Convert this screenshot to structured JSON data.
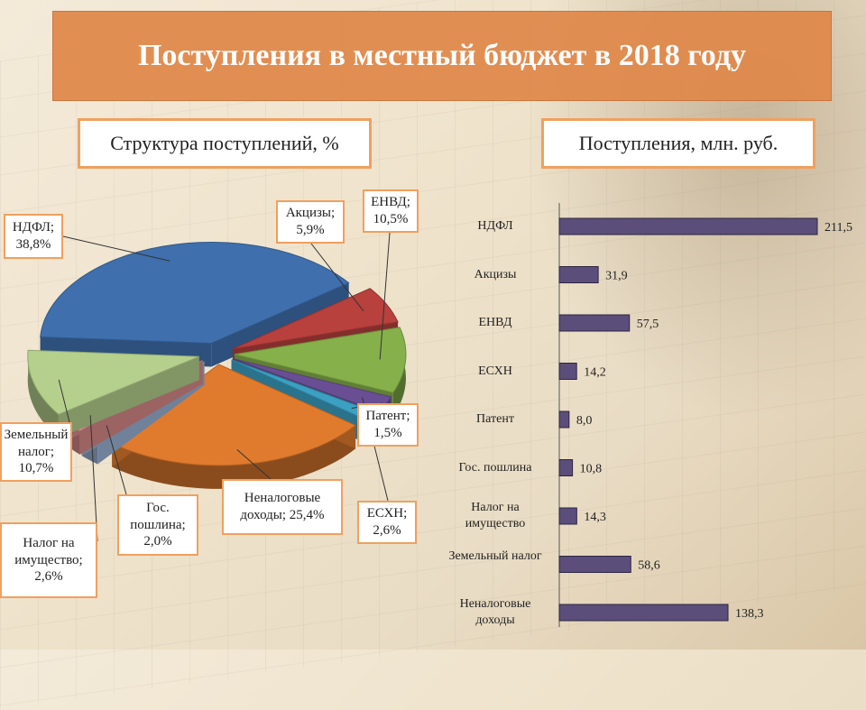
{
  "title": "Поступления в местный бюджет в 2018 году",
  "pie_header": "Структура поступлений, %",
  "bar_header": "Поступления, млн. руб.",
  "chart_data": [
    {
      "type": "pie",
      "title": "Структура поступлений, %",
      "slices": [
        {
          "label": "НДФЛ; 38,8%",
          "name": "НДФЛ",
          "value": 38.8,
          "color": "#3f6fad"
        },
        {
          "label": "Акцизы; 5,9%",
          "name": "Акцизы",
          "value": 5.9,
          "color": "#b8403d"
        },
        {
          "label": "ЕНВД; 10,5%",
          "name": "ЕНВД",
          "value": 10.5,
          "color": "#86b04a"
        },
        {
          "label": "ЕСХН; 2,6%",
          "name": "ЕСХН",
          "value": 2.6,
          "color": "#6a4e93"
        },
        {
          "label": "Патент; 1,5%",
          "name": "Патент",
          "value": 1.5,
          "color": "#3ba0c2"
        },
        {
          "label": "Неналоговые доходы; 25,4%",
          "name": "Неналоговые доходы",
          "value": 25.4,
          "color": "#e07b2e"
        },
        {
          "label": "Гос. пошлина; 2,0%",
          "name": "Гос. пошлина",
          "value": 2.0,
          "color": "#9bb3d6"
        },
        {
          "label": "Налог на имущество; 2,6%",
          "name": "Налог на имущество",
          "value": 2.6,
          "color": "#d88a8a"
        },
        {
          "label": "Земельный налог; 10,7%",
          "name": "Земельный налог",
          "value": 10.7,
          "color": "#b5cf8c"
        }
      ]
    },
    {
      "type": "bar",
      "orientation": "horizontal",
      "title": "Поступления, млн. руб.",
      "categories": [
        "НДФЛ",
        "Акцизы",
        "ЕНВД",
        "ЕСХН",
        "Патент",
        "Гос. пошлина",
        "Налог на имущество",
        "Земельный налог",
        "Неналоговые доходы"
      ],
      "values": [
        211.5,
        31.9,
        57.5,
        14.2,
        8.0,
        10.8,
        14.3,
        58.6,
        138.3
      ],
      "value_labels": [
        "211,5",
        "31,9",
        "57,5",
        "14,2",
        "8,0",
        "10,8",
        "14,3",
        "58,6",
        "138,3"
      ],
      "bar_color": "#5b4e7a",
      "xlim": [
        0,
        211.5
      ]
    }
  ]
}
